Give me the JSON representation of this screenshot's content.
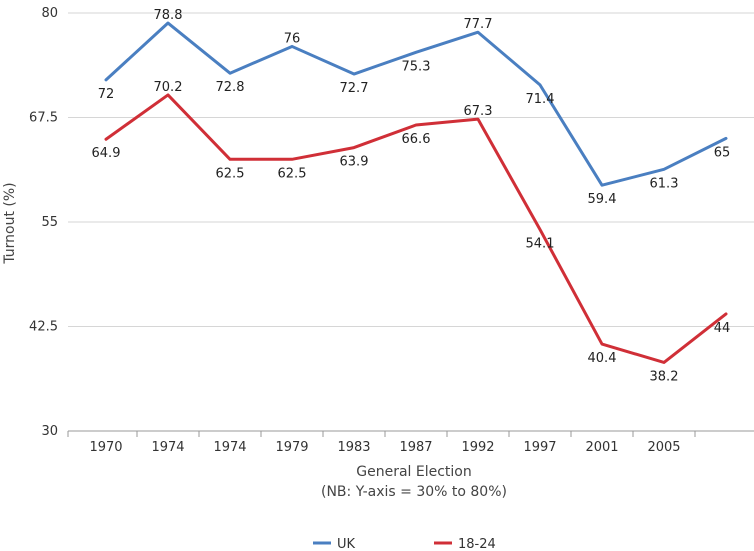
{
  "chart_data": {
    "type": "line",
    "categories": [
      "1970",
      "1974",
      "1974",
      "1979",
      "1983",
      "1987",
      "1992",
      "1997",
      "2001",
      "2005",
      ""
    ],
    "series": [
      {
        "name": "UK",
        "color": "#4a7fc1",
        "values": [
          72,
          78.8,
          72.8,
          76,
          72.7,
          75.3,
          77.7,
          71.4,
          59.4,
          61.3,
          65
        ]
      },
      {
        "name": "18-24",
        "color": "#d02f37",
        "values": [
          64.9,
          70.2,
          62.5,
          62.5,
          63.9,
          66.6,
          67.3,
          54.1,
          40.4,
          38.2,
          44
        ]
      }
    ],
    "xlabel": "General Election",
    "xlabel_note": "(NB: Y-axis = 30% to 80%)",
    "ylabel": "Turnout  (%)",
    "ylim": [
      30,
      80
    ],
    "yticks": [
      "30",
      "42.5",
      "55",
      "67.5",
      "80"
    ],
    "grid": true,
    "legend": "bottom"
  }
}
